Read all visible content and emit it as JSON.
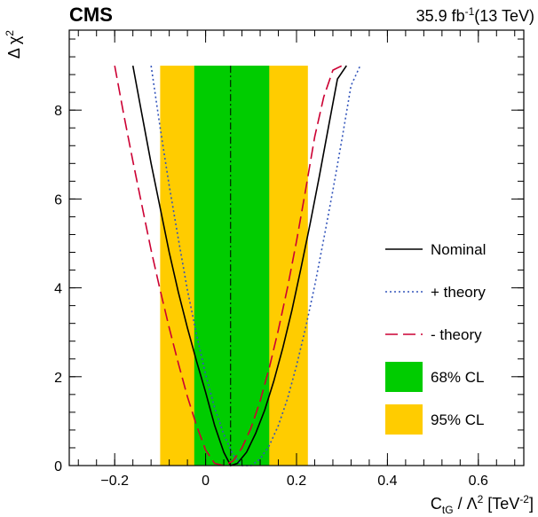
{
  "header": {
    "experiment": "CMS",
    "lumi_value": "35.9 fb",
    "lumi_exp": "-1",
    "lumi_energy": "(13 TeV)"
  },
  "chart_data": {
    "type": "line",
    "xlabel": {
      "main": "C",
      "sub": "tG",
      "mid": " / Λ",
      "sup": "2",
      "unit": " [TeV",
      "unit_sup": "-2",
      "unit_end": "]"
    },
    "ylabel": {
      "main": "Δ χ",
      "sup": "2"
    },
    "xlim": [
      -0.3,
      0.7
    ],
    "ylim": [
      0,
      9.8
    ],
    "x_ticks": [
      -0.2,
      0,
      0.2,
      0.4,
      0.6
    ],
    "x_tick_labels": [
      "−0.2",
      "0",
      "0.2",
      "0.4",
      "0.6"
    ],
    "y_ticks": [
      0,
      2,
      4,
      6,
      8
    ],
    "y_tick_labels": [
      "0",
      "2",
      "4",
      "6",
      "8"
    ],
    "best_fit": 0.055,
    "bands": [
      {
        "name": "95% CL",
        "x_min": -0.1,
        "x_max": 0.225,
        "y_max": 9.0,
        "color": "#ffcc00"
      },
      {
        "name": "68% CL",
        "x_min": -0.025,
        "x_max": 0.14,
        "y_max": 9.0,
        "color": "#00cc00"
      }
    ],
    "series": [
      {
        "name": "Nominal",
        "style": "solid",
        "color": "#000000",
        "x": [
          -0.16,
          -0.14,
          -0.12,
          -0.1,
          -0.08,
          -0.06,
          -0.04,
          -0.02,
          0.0,
          0.02,
          0.04,
          0.055,
          0.07,
          0.09,
          0.11,
          0.13,
          0.15,
          0.17,
          0.19,
          0.21,
          0.23,
          0.25,
          0.27,
          0.29,
          0.31
        ],
        "y": [
          9.0,
          7.9,
          6.8,
          5.8,
          4.8,
          3.9,
          3.1,
          2.35,
          1.65,
          0.9,
          0.3,
          0.0,
          0.05,
          0.3,
          0.72,
          1.25,
          1.9,
          2.65,
          3.5,
          4.45,
          5.45,
          6.5,
          7.6,
          8.7,
          9.0
        ]
      },
      {
        "name": "+ theory",
        "style": "dotted",
        "color": "#3355bb",
        "x": [
          -0.12,
          -0.1,
          -0.08,
          -0.06,
          -0.04,
          -0.02,
          0.0,
          0.02,
          0.04,
          0.06,
          0.08,
          0.1,
          0.12,
          0.14,
          0.16,
          0.18,
          0.2,
          0.22,
          0.24,
          0.26,
          0.28,
          0.3,
          0.32,
          0.34
        ],
        "y": [
          9.0,
          7.6,
          6.3,
          5.1,
          3.95,
          2.95,
          2.05,
          1.3,
          0.7,
          0.25,
          0.0,
          0.0,
          0.15,
          0.45,
          0.9,
          1.5,
          2.25,
          3.1,
          4.05,
          5.1,
          6.2,
          7.35,
          8.55,
          9.0
        ]
      },
      {
        "name": "- theory",
        "style": "dashed",
        "color": "#cc0033",
        "x": [
          -0.2,
          -0.18,
          -0.16,
          -0.14,
          -0.12,
          -0.1,
          -0.08,
          -0.06,
          -0.04,
          -0.02,
          0.0,
          0.02,
          0.04,
          0.06,
          0.08,
          0.1,
          0.12,
          0.14,
          0.16,
          0.18,
          0.2,
          0.22,
          0.24,
          0.26,
          0.28,
          0.3
        ],
        "y": [
          9.0,
          7.9,
          6.85,
          5.85,
          4.85,
          3.95,
          3.1,
          2.3,
          1.55,
          0.9,
          0.35,
          0.05,
          0.0,
          0.1,
          0.4,
          0.85,
          1.45,
          2.2,
          3.05,
          4.0,
          5.05,
          6.2,
          7.4,
          8.3,
          8.9,
          9.0
        ]
      }
    ],
    "legend": {
      "position": "right",
      "entries": [
        "Nominal",
        "+ theory",
        "- theory",
        "68% CL",
        "95% CL"
      ]
    }
  }
}
